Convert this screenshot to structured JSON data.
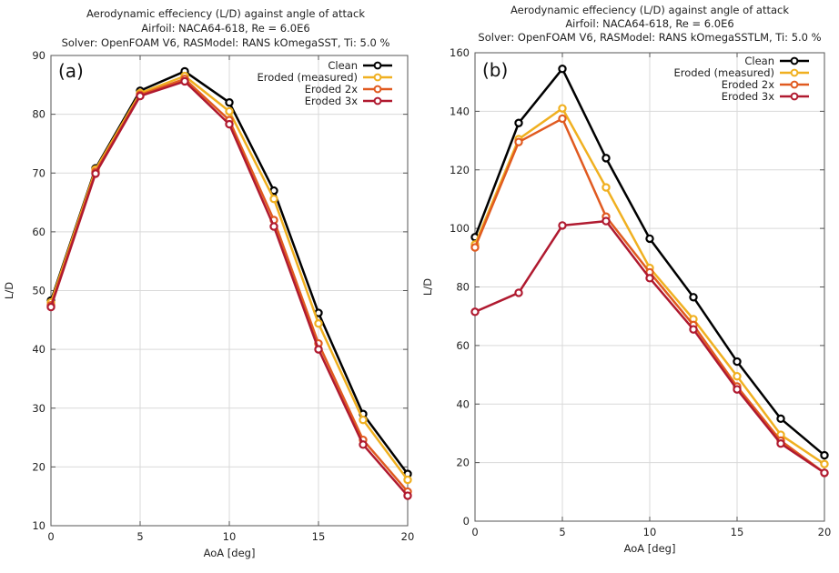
{
  "chart_data": [
    {
      "type": "line",
      "panel_label": "(a)",
      "title": [
        "Aerodynamic effeciency (L/D) against angle of attack",
        "Airfoil: NACA64-618, Re = 6.0E6",
        "Solver: OpenFOAM V6, RASModel: RANS kOmegaSST, Ti: 5.0 %"
      ],
      "xlabel": "AoA [deg]",
      "ylabel": "L/D",
      "xlim": [
        0,
        20
      ],
      "ylim": [
        10,
        90
      ],
      "xticks": [
        0,
        5,
        10,
        15,
        20
      ],
      "yticks": [
        10,
        20,
        30,
        40,
        50,
        60,
        70,
        80,
        90
      ],
      "grid": true,
      "legend_position": "top-right",
      "x": [
        0,
        2.5,
        5,
        7.5,
        10,
        12.5,
        15,
        17.5,
        20
      ],
      "series": [
        {
          "name": "Clean",
          "color": "#000000",
          "values": [
            48.3,
            70.8,
            84.0,
            87.3,
            82.0,
            67.0,
            46.2,
            29.0,
            18.8
          ]
        },
        {
          "name": "Eroded (measured)",
          "color": "#f0b020",
          "values": [
            48.0,
            70.6,
            83.6,
            86.5,
            80.5,
            65.6,
            44.4,
            28.0,
            17.8
          ]
        },
        {
          "name": "Eroded 2x",
          "color": "#e05a20",
          "values": [
            47.5,
            70.2,
            83.3,
            86.0,
            79.0,
            62.0,
            41.0,
            24.6,
            15.8
          ]
        },
        {
          "name": "Eroded 3x",
          "color": "#b01a30",
          "values": [
            47.2,
            69.9,
            83.1,
            85.6,
            78.3,
            60.9,
            40.0,
            23.8,
            15.1
          ]
        }
      ]
    },
    {
      "type": "line",
      "panel_label": "(b)",
      "title": [
        "Aerodynamic effeciency (L/D) against angle of attack",
        "Airfoil: NACA64-618, Re = 6.0E6",
        "Solver: OpenFOAM V6, RASModel: RANS kOmegaSSTLM, Ti: 5.0 %"
      ],
      "xlabel": "AoA [deg]",
      "ylabel": "L/D",
      "xlim": [
        0,
        20
      ],
      "ylim": [
        0,
        160
      ],
      "xticks": [
        0,
        5,
        10,
        15,
        20
      ],
      "yticks": [
        0,
        20,
        40,
        60,
        80,
        100,
        120,
        140,
        160
      ],
      "grid": true,
      "legend_position": "top-right",
      "x": [
        0,
        2.5,
        5,
        7.5,
        10,
        12.5,
        15,
        17.5,
        20
      ],
      "series": [
        {
          "name": "Clean",
          "color": "#000000",
          "values": [
            97.0,
            136.0,
            154.5,
            124.0,
            96.5,
            76.5,
            54.5,
            35.0,
            22.5
          ]
        },
        {
          "name": "Eroded (measured)",
          "color": "#f0b020",
          "values": [
            94.5,
            130.5,
            141.0,
            114.0,
            86.5,
            69.0,
            49.5,
            29.5,
            19.5
          ]
        },
        {
          "name": "Eroded 2x",
          "color": "#e05a20",
          "values": [
            93.5,
            129.5,
            137.5,
            104.0,
            85.0,
            67.0,
            46.0,
            27.5,
            16.5
          ]
        },
        {
          "name": "Eroded 3x",
          "color": "#b01a30",
          "values": [
            71.5,
            78.0,
            101.0,
            102.5,
            83.0,
            65.5,
            45.0,
            26.5,
            16.5
          ]
        }
      ]
    }
  ]
}
